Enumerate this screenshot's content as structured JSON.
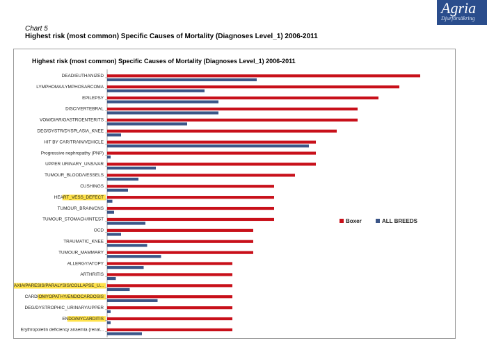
{
  "caption": "Chart 5",
  "subtitle": "Highest risk (most common) Specific Causes of Mortality (Diagnoses Level_1) 2006-2011",
  "logo": {
    "name": "Agria",
    "sub": "Djurförsäkring"
  },
  "colors": {
    "boxer": "#c8101a",
    "all_breeds": "#3b5587",
    "highlight": "#ffe24a"
  },
  "chart_data": {
    "type": "bar",
    "orientation": "horizontal",
    "title": "Highest risk (most common) Specific Causes of Mortality (Diagnoses Level_1) 2006-2011",
    "xlabel": "",
    "ylabel": "",
    "xlim": [
      0,
      1
    ],
    "grid": false,
    "legend_position": "right",
    "categories": [
      "DEAD/EUTHANIZED",
      "LYMPHOMA/LYMPHOSARCOMA",
      "EPILEPSY",
      "DISC/VERTEBRAL",
      "VOM/DIAR/GASTROENTERITS",
      "DEG/DYSTR/DYSPLASIA_KNEE",
      "HIT BY CAR/TRAIN/VEHICLE",
      "Progressive nephropathy (PNP)",
      "UPPER URINARY_UNS/VAR",
      "TUMOUR_BLOOD/VESSELS",
      "CUSHINGS",
      "HEART_VESS_DEFECT",
      "TUMOUR_BRAIN/CNS",
      "TUMOUR_STOMACH/INTEST",
      "OCD",
      "TRAUMATIC_KNEE",
      "TUMOUR_MAMMARY",
      "ALLERGY/ATOPY",
      "ARTHRITIS",
      "ATAXIA/PARESIS/PARALYSIS/COLLAPSE_U...",
      "CARDIOMYOPATHY/ENDOCARDOSIS",
      "DEG/DYSTROPHIC_URINARY/UPPER",
      "ENDO/MYCARDITIS",
      "Erythropoietin deficiency anaemia (renal..."
    ],
    "highlighted": [
      "HEART_VESS_DEFECT",
      "ATAXIA/PARESIS/PARALYSIS/COLLAPSE_U...",
      "CARDIOMYOPATHY/ENDOCARDOSIS",
      "ENDO/MYCARDITIS"
    ],
    "series": [
      {
        "name": "Boxer",
        "values": [
          0.9,
          0.84,
          0.78,
          0.72,
          0.72,
          0.66,
          0.6,
          0.6,
          0.6,
          0.54,
          0.48,
          0.48,
          0.48,
          0.48,
          0.42,
          0.42,
          0.42,
          0.36,
          0.36,
          0.36,
          0.36,
          0.36,
          0.36,
          0.36
        ]
      },
      {
        "name": "ALL BREEDS",
        "values": [
          0.43,
          0.28,
          0.32,
          0.32,
          0.23,
          0.04,
          0.58,
          0.01,
          0.14,
          0.09,
          0.06,
          0.015,
          0.02,
          0.11,
          0.04,
          0.115,
          0.155,
          0.105,
          0.025,
          0.065,
          0.145,
          0.01,
          0.01,
          0.1
        ]
      }
    ]
  }
}
